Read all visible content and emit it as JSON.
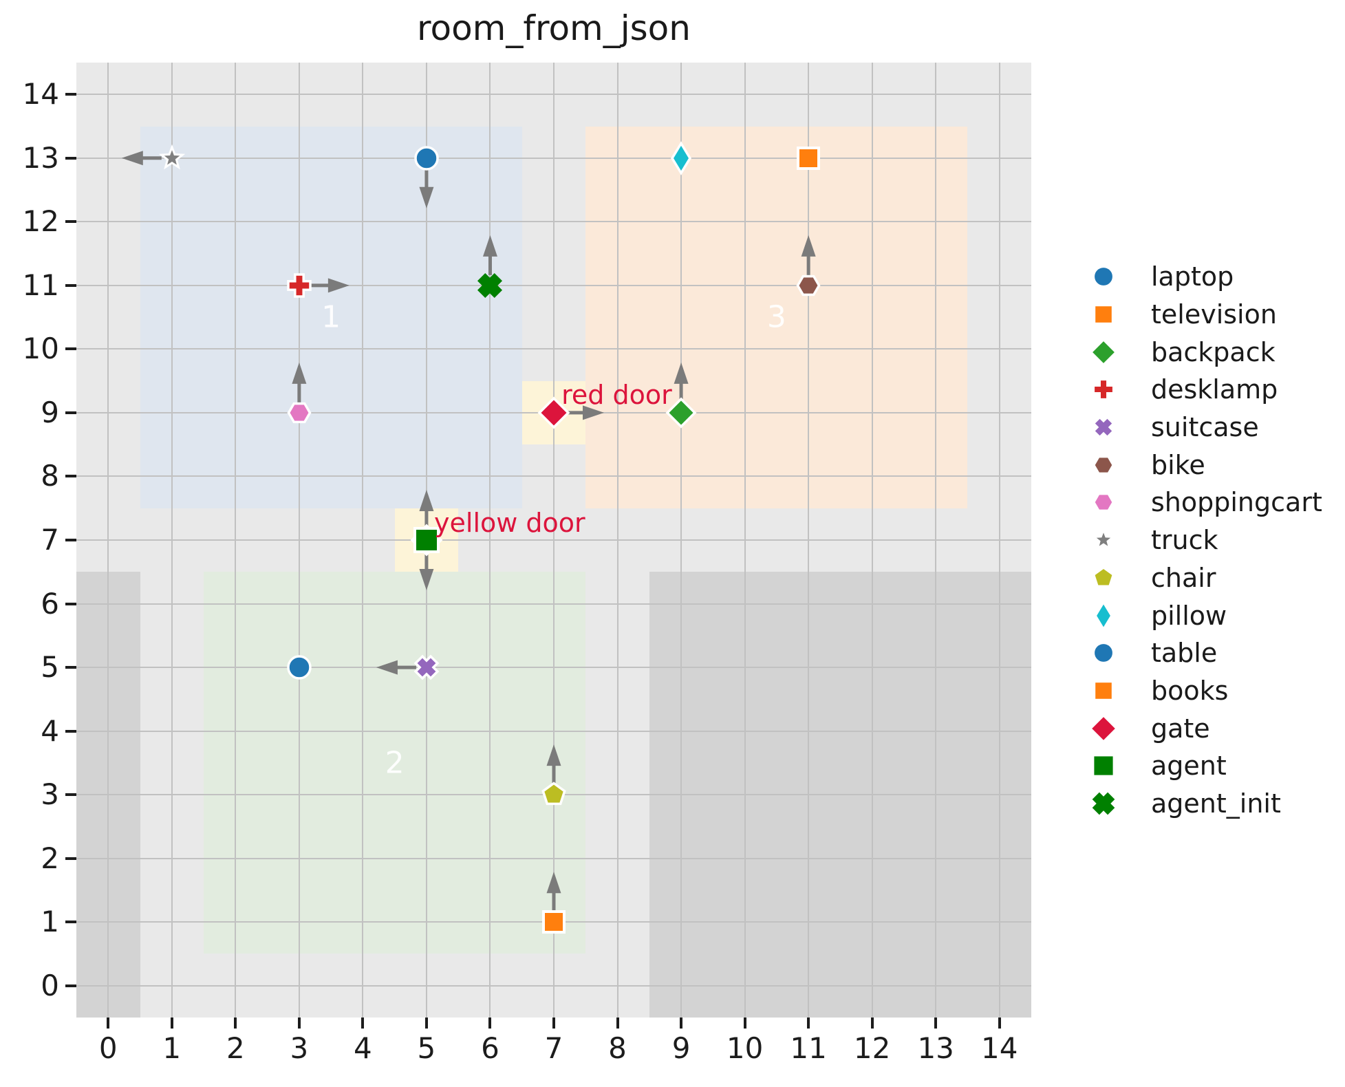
{
  "figure": {
    "background": "#ffffff",
    "plot_background": "#e9e9e9",
    "grid_color": "#c1c1c1",
    "tick_color": "#1c1c1c",
    "arrow_color": "#7b7b7b"
  },
  "chart_data": {
    "type": "scatter",
    "title": "room_from_json",
    "xlim": [
      -0.5,
      14.5
    ],
    "ylim": [
      -0.5,
      14.5
    ],
    "xticks": [
      0,
      1,
      2,
      3,
      4,
      5,
      6,
      7,
      8,
      9,
      10,
      11,
      12,
      13,
      14
    ],
    "yticks": [
      0,
      1,
      2,
      3,
      4,
      5,
      6,
      7,
      8,
      9,
      10,
      11,
      12,
      13,
      14
    ],
    "grid": true,
    "legend_position": "right",
    "regions": [
      {
        "name": "wall-left",
        "x0": -0.5,
        "y0": -0.5,
        "x1": 0.5,
        "y1": 6.5,
        "color": "#d3d3d3"
      },
      {
        "name": "wall-bottom-right",
        "x0": 8.5,
        "y0": -0.5,
        "x1": 14.5,
        "y1": 6.5,
        "color": "#d3d3d3"
      },
      {
        "name": "room-1",
        "x0": 0.5,
        "y0": 7.5,
        "x1": 6.5,
        "y1": 13.5,
        "color": "#dfe6ef",
        "label": "1",
        "label_x": 3.5,
        "label_y": 10.5
      },
      {
        "name": "room-2",
        "x0": 1.5,
        "y0": 0.5,
        "x1": 7.5,
        "y1": 6.5,
        "color": "#e2ecdf",
        "label": "2",
        "label_x": 4.5,
        "label_y": 3.5
      },
      {
        "name": "room-3",
        "x0": 7.5,
        "y0": 7.5,
        "x1": 13.5,
        "y1": 13.5,
        "color": "#fbe9d9",
        "label": "3",
        "label_x": 10.5,
        "label_y": 10.5
      },
      {
        "name": "door-cell-red",
        "x0": 6.5,
        "y0": 8.5,
        "x1": 7.5,
        "y1": 9.5,
        "color": "#fdf4d8"
      },
      {
        "name": "door-cell-yellow",
        "x0": 4.5,
        "y0": 6.5,
        "x1": 5.5,
        "y1": 7.5,
        "color": "#fdf4d8"
      }
    ],
    "points": [
      {
        "name": "truck",
        "x": 1,
        "y": 13,
        "marker": "star",
        "color": "#7f7f7f",
        "arrow": "left",
        "edge": true
      },
      {
        "name": "laptop",
        "x": 5,
        "y": 13,
        "marker": "circle",
        "color": "#1f77b4",
        "arrow": "down",
        "edge": true
      },
      {
        "name": "pillow",
        "x": 9,
        "y": 13,
        "marker": "thin-diamond",
        "color": "#17becf",
        "arrow": null,
        "edge": true
      },
      {
        "name": "television",
        "x": 11,
        "y": 13,
        "marker": "square",
        "color": "#ff7f0e",
        "arrow": null,
        "edge": true
      },
      {
        "name": "desklamp",
        "x": 3,
        "y": 11,
        "marker": "plus",
        "color": "#d62728",
        "arrow": "right",
        "edge": true
      },
      {
        "name": "agent_init",
        "x": 6,
        "y": 11,
        "marker": "x-large",
        "color": "#008000",
        "arrow": "up",
        "edge": false
      },
      {
        "name": "bike",
        "x": 11,
        "y": 11,
        "marker": "hexagon",
        "color": "#8c564b",
        "arrow": "up",
        "edge": true
      },
      {
        "name": "shoppingcart",
        "x": 3,
        "y": 9,
        "marker": "hexagon",
        "color": "#e377c2",
        "arrow": "up",
        "edge": true
      },
      {
        "name": "gate-red-door",
        "x": 7,
        "y": 9,
        "marker": "diamond-lg",
        "color": "#dc143c",
        "arrow": "right",
        "edge": true
      },
      {
        "name": "backpack",
        "x": 9,
        "y": 9,
        "marker": "diamond",
        "color": "#2ca02c",
        "arrow": "up",
        "edge": true
      },
      {
        "name": "gate-yellow-door",
        "x": 5,
        "y": 7,
        "marker": "diamond-lg",
        "color": "#dc143c",
        "arrow": "down",
        "edge": true
      },
      {
        "name": "agent",
        "x": 5,
        "y": 7,
        "marker": "square-lg",
        "color": "#008000",
        "arrow": "up",
        "edge": true
      },
      {
        "name": "table",
        "x": 3,
        "y": 5,
        "marker": "circle",
        "color": "#1f77b4",
        "arrow": null,
        "edge": true
      },
      {
        "name": "suitcase",
        "x": 5,
        "y": 5,
        "marker": "x",
        "color": "#9467bd",
        "arrow": "left",
        "edge": true
      },
      {
        "name": "chair",
        "x": 7,
        "y": 3,
        "marker": "pentagon",
        "color": "#bcbd22",
        "arrow": "up",
        "edge": true
      },
      {
        "name": "books",
        "x": 7,
        "y": 1,
        "marker": "square",
        "color": "#ff7f0e",
        "arrow": "up",
        "edge": true
      }
    ],
    "annotations": [
      {
        "text": "red door",
        "x": 7.12,
        "y": 9.28,
        "color": "#dc143c"
      },
      {
        "text": "yellow door",
        "x": 5.12,
        "y": 7.27,
        "color": "#dc143c"
      }
    ],
    "legend": [
      {
        "label": "laptop",
        "marker": "circle",
        "color": "#1f77b4",
        "edge": true
      },
      {
        "label": "television",
        "marker": "square",
        "color": "#ff7f0e",
        "edge": true
      },
      {
        "label": "backpack",
        "marker": "diamond",
        "color": "#2ca02c",
        "edge": true
      },
      {
        "label": "desklamp",
        "marker": "plus",
        "color": "#d62728",
        "edge": true
      },
      {
        "label": "suitcase",
        "marker": "x",
        "color": "#9467bd",
        "edge": true
      },
      {
        "label": "bike",
        "marker": "hexagon",
        "color": "#8c564b",
        "edge": true
      },
      {
        "label": "shoppingcart",
        "marker": "hexagon",
        "color": "#e377c2",
        "edge": true
      },
      {
        "label": "truck",
        "marker": "star",
        "color": "#7f7f7f",
        "edge": true
      },
      {
        "label": "chair",
        "marker": "pentagon",
        "color": "#bcbd22",
        "edge": true
      },
      {
        "label": "pillow",
        "marker": "thin-diamond",
        "color": "#17becf",
        "edge": true
      },
      {
        "label": "table",
        "marker": "circle",
        "color": "#1f77b4",
        "edge": true
      },
      {
        "label": "books",
        "marker": "square",
        "color": "#ff7f0e",
        "edge": true
      },
      {
        "label": "gate",
        "marker": "diamond-lg",
        "color": "#dc143c",
        "edge": true
      },
      {
        "label": "agent",
        "marker": "square-lg",
        "color": "#008000",
        "edge": true
      },
      {
        "label": "agent_init",
        "marker": "x-large",
        "color": "#008000",
        "edge": false
      }
    ]
  }
}
